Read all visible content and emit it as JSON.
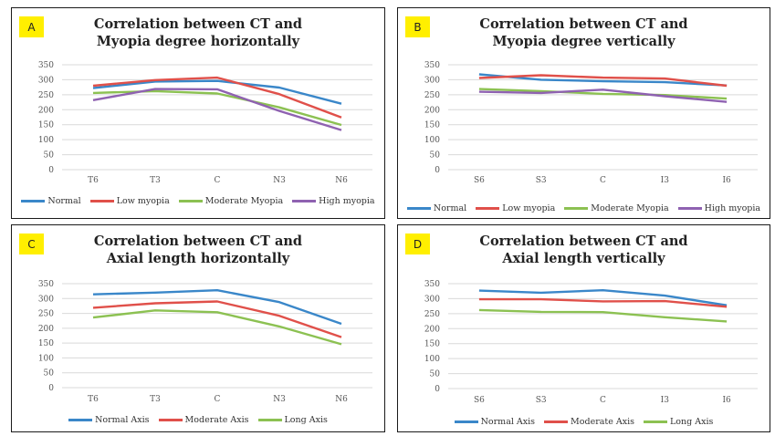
{
  "colors": {
    "Normal": "#3a87c9",
    "Low": "#e0504a",
    "Moderate": "#8cc152",
    "High": "#8f62b1",
    "grid": "#d9d9d9",
    "axisText": "#555555",
    "badge": "#ffef00"
  },
  "chart_data": [
    {
      "label": "A",
      "type": "line",
      "title": "Correlation between CT and",
      "subtitle": "Myopia degree horizontally",
      "categories": [
        "T6",
        "T3",
        "C",
        "N3",
        "N6"
      ],
      "ylim": [
        0,
        350
      ],
      "yticks": [
        "0",
        "50",
        "100",
        "150",
        "200",
        "250",
        "300",
        "350"
      ],
      "grid": true,
      "legend_position": "bottom",
      "series": [
        {
          "name": "Normal",
          "color": "#3a87c9",
          "values": [
            272,
            294,
            296,
            274,
            220
          ]
        },
        {
          "name": "Low myopia",
          "color": "#e0504a",
          "values": [
            280,
            299,
            307,
            252,
            174
          ]
        },
        {
          "name": "Moderate Myopia",
          "color": "#8cc152",
          "values": [
            256,
            262,
            254,
            208,
            149
          ]
        },
        {
          "name": "High myopia",
          "color": "#8f62b1",
          "values": [
            232,
            269,
            268,
            196,
            132
          ]
        }
      ]
    },
    {
      "label": "B",
      "type": "line",
      "title": "Correlation between CT and",
      "subtitle": "Myopia degree vertically",
      "categories": [
        "S6",
        "S3",
        "C",
        "I3",
        "I6"
      ],
      "ylim": [
        0,
        350
      ],
      "yticks": [
        "0",
        "50",
        "100",
        "150",
        "200",
        "250",
        "300",
        "350"
      ],
      "grid": true,
      "legend_position": "bottom",
      "series": [
        {
          "name": "Normal",
          "color": "#3a87c9",
          "values": [
            318,
            300,
            295,
            292,
            281
          ]
        },
        {
          "name": "Low myopia",
          "color": "#e0504a",
          "values": [
            306,
            315,
            307,
            304,
            280
          ]
        },
        {
          "name": "Moderate Myopia",
          "color": "#8cc152",
          "values": [
            269,
            262,
            253,
            249,
            237
          ]
        },
        {
          "name": "High myopia",
          "color": "#8f62b1",
          "values": [
            260,
            256,
            267,
            245,
            226
          ]
        }
      ]
    },
    {
      "label": "C",
      "type": "line",
      "title": "Correlation between CT and",
      "subtitle": "Axial length horizontally",
      "categories": [
        "T6",
        "T3",
        "C",
        "N3",
        "N6"
      ],
      "ylim": [
        0,
        350
      ],
      "yticks": [
        "0",
        "50",
        "100",
        "150",
        "200",
        "250",
        "300",
        "350"
      ],
      "grid": true,
      "legend_position": "bottom",
      "series": [
        {
          "name": "Normal Axis",
          "color": "#3a87c9",
          "values": [
            314,
            320,
            328,
            288,
            215
          ]
        },
        {
          "name": "Moderate Axis",
          "color": "#e0504a",
          "values": [
            269,
            284,
            290,
            242,
            170
          ]
        },
        {
          "name": "Long Axis",
          "color": "#8cc152",
          "values": [
            236,
            260,
            254,
            206,
            146
          ]
        }
      ]
    },
    {
      "label": "D",
      "type": "line",
      "title": "Correlation between CT and",
      "subtitle": "Axial length vertically",
      "categories": [
        "S6",
        "S3",
        "C",
        "I3",
        "I6"
      ],
      "ylim": [
        0,
        350
      ],
      "yticks": [
        "0",
        "50",
        "100",
        "150",
        "200",
        "250",
        "300",
        "350"
      ],
      "grid": true,
      "legend_position": "bottom",
      "series": [
        {
          "name": "Normal Axis",
          "color": "#3a87c9",
          "values": [
            327,
            320,
            328,
            310,
            278
          ]
        },
        {
          "name": "Moderate Axis",
          "color": "#e0504a",
          "values": [
            298,
            298,
            291,
            292,
            273
          ]
        },
        {
          "name": "Long Axis",
          "color": "#8cc152",
          "values": [
            262,
            256,
            255,
            238,
            224
          ]
        }
      ]
    }
  ]
}
